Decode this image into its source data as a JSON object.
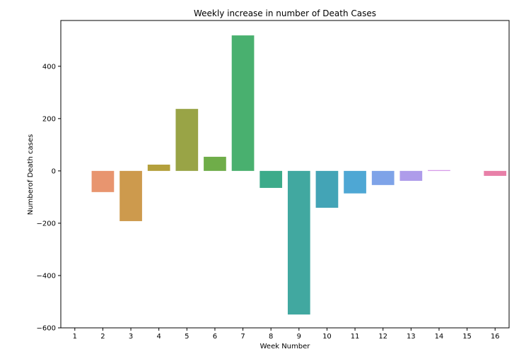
{
  "chart_data": {
    "type": "bar",
    "title": "Weekly increase in number of Death Cases",
    "xlabel": "Week Number",
    "ylabel": "Numberof Death cases",
    "categories": [
      "1",
      "2",
      "3",
      "4",
      "5",
      "6",
      "7",
      "8",
      "9",
      "10",
      "11",
      "12",
      "13",
      "14",
      "15",
      "16"
    ],
    "values": [
      0,
      -81,
      -192,
      24,
      237,
      54,
      518,
      -65,
      -549,
      -141,
      -86,
      -54,
      -38,
      3,
      0,
      -19
    ],
    "colors": [
      "#e8786b",
      "#e8956f",
      "#cd9a4d",
      "#b4a03c",
      "#99a446",
      "#6fad49",
      "#49b06f",
      "#3cab8a",
      "#41a8a0",
      "#43a4b6",
      "#4ea7d4",
      "#7ea3e8",
      "#ae9cea",
      "#d18ce6",
      "#e684cc",
      "#e880a8"
    ],
    "yticks": [
      -600,
      -400,
      -200,
      0,
      200,
      400
    ],
    "ylim": [
      -600,
      575
    ],
    "grid": false,
    "legend": "none"
  }
}
